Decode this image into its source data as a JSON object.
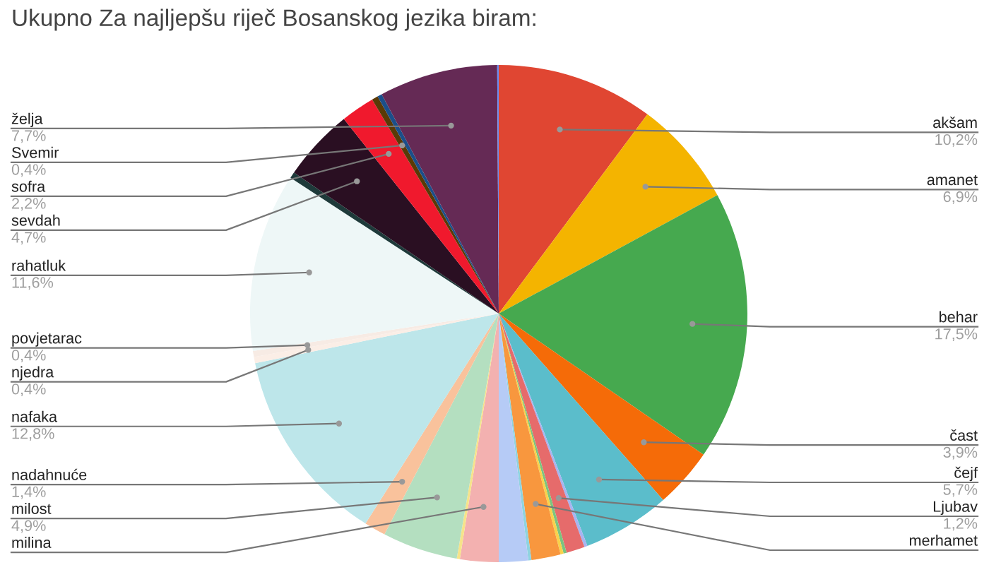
{
  "chart_data": {
    "type": "pie",
    "title": "Ukupno Za najljepšu riječ Bosanskog jezika biram:",
    "categories": [
      "akšam",
      "amanet",
      "behar",
      "čast",
      "čejf",
      null,
      "Ljubav",
      null,
      null,
      "merhamet",
      null,
      null,
      "milina",
      null,
      "milost",
      "nadahnuće",
      "nafaka",
      "njedra",
      "povjetarac",
      "rahatluk",
      null,
      "sevdah",
      "sofra",
      "Svemir",
      null,
      "želja",
      null
    ],
    "values": [
      10.2,
      6.9,
      17.5,
      3.9,
      5.7,
      0.2,
      1.2,
      0.2,
      0.2,
      1.9,
      0.2,
      1.9,
      2.5,
      0.2,
      4.9,
      1.4,
      12.8,
      0.4,
      0.4,
      11.6,
      0.4,
      4.7,
      2.2,
      0.4,
      0.3,
      7.7,
      0.1
    ],
    "colors": [
      "#e04632",
      "#f4b400",
      "#46a94f",
      "#f56b08",
      "#5bbdcb",
      "#a7b4f0",
      "#e66b6b",
      "#7cc47f",
      "#f8d24b",
      "#f8973e",
      "#8fd3e0",
      "#b6cbf6",
      "#f3b1b0",
      "#f6e38a",
      "#b4dfc0",
      "#f9c29c",
      "#bde6ea",
      "#fbeee6",
      "#f7ebe4",
      "#eef7f7",
      "#1e3a3a",
      "#2a0f22",
      "#f0192d",
      "#5a3a06",
      "#1b4f8a",
      "#652a55",
      "#6a8cf0"
    ],
    "value_labels": [
      "10,2%",
      "6,9%",
      "17,5%",
      "3,9%",
      "5,7%",
      null,
      "1,2%",
      null,
      null,
      null,
      null,
      null,
      null,
      null,
      "4,9%",
      "1,4%",
      "12,8%",
      "0,4%",
      "0,4%",
      "11,6%",
      null,
      "4,7%",
      "2,2%",
      "0,4%",
      null,
      "7,7%",
      null
    ]
  }
}
